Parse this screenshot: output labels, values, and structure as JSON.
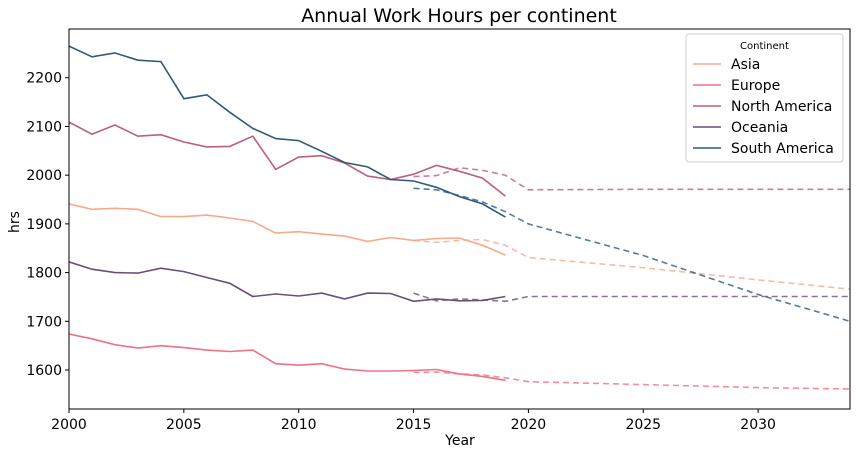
{
  "chart_data": {
    "type": "line",
    "title": "Annual Work Hours per continent",
    "xlabel": "Year",
    "ylabel": "hrs",
    "xlim": [
      2000,
      2034
    ],
    "ylim": [
      1520,
      2300
    ],
    "xticks": [
      2000,
      2005,
      2010,
      2015,
      2020,
      2025,
      2030
    ],
    "yticks": [
      1600,
      1700,
      1800,
      1900,
      2000,
      2100,
      2200
    ],
    "grid": false,
    "legend": {
      "title": "Continent",
      "placement": "top-right"
    },
    "series": [
      {
        "name": "Asia",
        "color": "#f7a98b",
        "x": [
          2000,
          2001,
          2002,
          2003,
          2004,
          2005,
          2006,
          2007,
          2008,
          2009,
          2010,
          2011,
          2012,
          2013,
          2014,
          2015,
          2016,
          2017,
          2018,
          2019
        ],
        "values": [
          1941,
          1930,
          1932,
          1930,
          1915,
          1915,
          1918,
          1912,
          1905,
          1881,
          1884,
          1879,
          1875,
          1864,
          1872,
          1866,
          1870,
          1871,
          1856,
          1836
        ],
        "forecast": {
          "x": [
            2015,
            2016,
            2017,
            2018,
            2019,
            2020,
            2025,
            2030,
            2034
          ],
          "values": [
            1866,
            1862,
            1866,
            1868,
            1856,
            1831,
            1810,
            1785,
            1766
          ]
        }
      },
      {
        "name": "Europe",
        "color": "#ef7283",
        "x": [
          2000,
          2001,
          2002,
          2003,
          2004,
          2005,
          2006,
          2007,
          2008,
          2009,
          2010,
          2011,
          2012,
          2013,
          2014,
          2015,
          2016,
          2017,
          2018,
          2019
        ],
        "values": [
          1674,
          1664,
          1652,
          1645,
          1650,
          1646,
          1641,
          1638,
          1641,
          1613,
          1610,
          1613,
          1602,
          1598,
          1598,
          1599,
          1601,
          1592,
          1587,
          1579
        ],
        "forecast": {
          "x": [
            2015,
            2016,
            2017,
            2018,
            2019,
            2020,
            2025,
            2030,
            2034
          ],
          "values": [
            1595,
            1596,
            1592,
            1590,
            1584,
            1576,
            1570,
            1564,
            1561
          ]
        }
      },
      {
        "name": "North America",
        "color": "#b95f84",
        "x": [
          2000,
          2001,
          2002,
          2003,
          2004,
          2005,
          2006,
          2007,
          2008,
          2009,
          2010,
          2011,
          2012,
          2013,
          2014,
          2015,
          2016,
          2017,
          2018,
          2019
        ],
        "values": [
          2109,
          2084,
          2103,
          2080,
          2083,
          2068,
          2058,
          2059,
          2080,
          2012,
          2037,
          2040,
          2025,
          1998,
          1991,
          2002,
          2020,
          2008,
          1994,
          1957
        ],
        "forecast": {
          "x": [
            2015,
            2016,
            2017,
            2018,
            2019,
            2020,
            2025,
            2030,
            2034
          ],
          "values": [
            1997,
            1999,
            2015,
            2010,
            2000,
            1970,
            1971,
            1971,
            1971
          ]
        }
      },
      {
        "name": "Oceania",
        "color": "#6b4f75",
        "x": [
          2000,
          2001,
          2002,
          2003,
          2004,
          2005,
          2006,
          2007,
          2008,
          2009,
          2010,
          2011,
          2012,
          2013,
          2014,
          2015,
          2016,
          2017,
          2018,
          2019
        ],
        "values": [
          1822,
          1807,
          1800,
          1799,
          1809,
          1802,
          1790,
          1778,
          1751,
          1756,
          1752,
          1758,
          1746,
          1758,
          1757,
          1741,
          1746,
          1742,
          1743,
          1751
        ],
        "forecast": {
          "x": [
            2015,
            2016,
            2017,
            2018,
            2019,
            2020,
            2025,
            2030,
            2034
          ],
          "values": [
            1758,
            1742,
            1746,
            1744,
            1741,
            1751,
            1751,
            1751,
            1751
          ]
        }
      },
      {
        "name": "South America",
        "color": "#2e5a7a",
        "x": [
          2000,
          2001,
          2002,
          2003,
          2004,
          2005,
          2006,
          2007,
          2008,
          2009,
          2010,
          2011,
          2012,
          2013,
          2014,
          2015,
          2016,
          2017,
          2018,
          2019
        ],
        "values": [
          2265,
          2243,
          2251,
          2236,
          2233,
          2157,
          2165,
          2129,
          2096,
          2075,
          2071,
          2049,
          2026,
          2017,
          1991,
          1988,
          1975,
          1956,
          1941,
          1914
        ],
        "forecast": {
          "x": [
            2015,
            2016,
            2017,
            2018,
            2019,
            2020,
            2025,
            2030,
            2034
          ],
          "values": [
            1973,
            1970,
            1958,
            1945,
            1925,
            1900,
            1835,
            1755,
            1700
          ]
        }
      }
    ]
  }
}
